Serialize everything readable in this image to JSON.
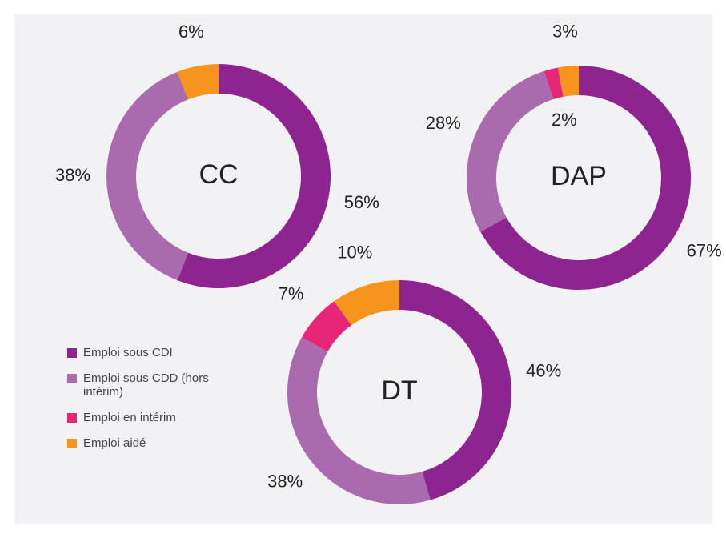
{
  "legend": {
    "labels": [
      "Emploi sous CDI",
      "Emploi sous CDD (hors intérim)",
      "Emploi en intérim",
      "Emploi aidé"
    ],
    "colors": [
      "#8e2490",
      "#a96bad",
      "#e7267a",
      "#f7941d"
    ]
  },
  "chart_data": [
    {
      "type": "donut",
      "title": "CC",
      "values": [
        56,
        38,
        null,
        6
      ],
      "value_labels": [
        "56%",
        "38%",
        null,
        "6%"
      ]
    },
    {
      "type": "donut",
      "title": "DAP",
      "values": [
        67,
        28,
        2,
        3
      ],
      "value_labels": [
        "67%",
        "28%",
        "2%",
        "3%"
      ]
    },
    {
      "type": "donut",
      "title": "DT",
      "values": [
        46,
        38,
        7,
        10
      ],
      "value_labels": [
        "46%",
        "38%",
        "7%",
        "10%"
      ]
    }
  ]
}
